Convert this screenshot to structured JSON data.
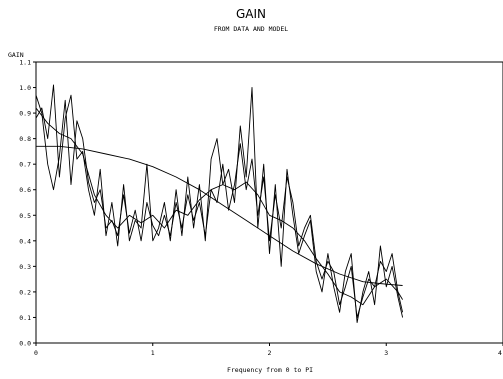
{
  "chart_data": {
    "type": "line",
    "title": "GAIN",
    "subtitle": "FROM DATA AND MODEL",
    "xlabel": "Frequency from 0 to PI",
    "ylabel": "GAIN",
    "xlim": [
      0,
      4
    ],
    "ylim": [
      0,
      1.1
    ],
    "xticks": [
      0,
      1,
      2,
      3,
      4
    ],
    "yticks": [
      0.0,
      0.1,
      0.2,
      0.3,
      0.4,
      0.5,
      0.6,
      0.7,
      0.8,
      0.9,
      1.0,
      1.1
    ],
    "ytick_labels": [
      "0.0",
      "0.1",
      "0.2",
      "0.3",
      "0.4",
      "0.5",
      "0.6",
      "0.7",
      "0.8",
      "0.9",
      "1.0",
      "1.1"
    ],
    "grid": false,
    "series": [
      {
        "values_x": [
          0,
          0.05,
          0.1,
          0.15,
          0.2,
          0.25,
          0.3,
          0.35,
          0.4,
          0.45,
          0.5,
          0.55,
          0.6,
          0.65,
          0.7,
          0.75,
          0.8,
          0.85,
          0.9,
          0.95,
          1.0,
          1.05,
          1.1,
          1.15,
          1.2,
          1.25,
          1.3,
          1.35,
          1.4,
          1.45,
          1.5,
          1.55,
          1.6,
          1.65,
          1.7,
          1.75,
          1.8,
          1.85,
          1.9,
          1.95,
          2.0,
          2.05,
          2.1,
          2.15,
          2.2,
          2.25,
          2.3,
          2.35,
          2.4,
          2.45,
          2.5,
          2.55,
          2.6,
          2.65,
          2.7,
          2.75,
          2.8,
          2.85,
          2.9,
          2.95,
          3.0,
          3.05,
          3.1,
          3.14
        ],
        "values": [
          0.97,
          0.9,
          0.7,
          0.6,
          0.73,
          0.95,
          0.62,
          0.87,
          0.8,
          0.63,
          0.55,
          0.6,
          0.45,
          0.48,
          0.42,
          0.58,
          0.43,
          0.52,
          0.4,
          0.55,
          0.46,
          0.42,
          0.5,
          0.42,
          0.55,
          0.45,
          0.58,
          0.48,
          0.55,
          0.42,
          0.6,
          0.55,
          0.7,
          0.52,
          0.62,
          0.78,
          0.6,
          0.72,
          0.5,
          0.65,
          0.4,
          0.58,
          0.45,
          0.65,
          0.55,
          0.38,
          0.45,
          0.5,
          0.32,
          0.25,
          0.32,
          0.28,
          0.15,
          0.22,
          0.3,
          0.1,
          0.18,
          0.25,
          0.22,
          0.32,
          0.28,
          0.35,
          0.2,
          0.12
        ]
      },
      {
        "values_x": [
          0,
          0.05,
          0.1,
          0.15,
          0.2,
          0.25,
          0.3,
          0.35,
          0.4,
          0.45,
          0.5,
          0.55,
          0.6,
          0.65,
          0.7,
          0.75,
          0.8,
          0.85,
          0.9,
          0.95,
          1.0,
          1.05,
          1.1,
          1.15,
          1.2,
          1.25,
          1.3,
          1.35,
          1.4,
          1.45,
          1.5,
          1.55,
          1.6,
          1.65,
          1.7,
          1.75,
          1.8,
          1.85,
          1.9,
          1.95,
          2.0,
          2.05,
          2.1,
          2.15,
          2.2,
          2.25,
          2.3,
          2.35,
          2.4,
          2.45,
          2.5,
          2.55,
          2.6,
          2.65,
          2.7,
          2.75,
          2.8,
          2.85,
          2.9,
          2.95,
          3.0,
          3.05,
          3.1,
          3.14
        ],
        "values": [
          0.88,
          0.92,
          0.8,
          1.01,
          0.65,
          0.88,
          0.97,
          0.72,
          0.75,
          0.6,
          0.5,
          0.68,
          0.42,
          0.55,
          0.38,
          0.62,
          0.4,
          0.48,
          0.45,
          0.7,
          0.4,
          0.45,
          0.55,
          0.4,
          0.6,
          0.42,
          0.65,
          0.45,
          0.62,
          0.4,
          0.72,
          0.8,
          0.62,
          0.68,
          0.55,
          0.85,
          0.65,
          1.0,
          0.45,
          0.7,
          0.35,
          0.62,
          0.3,
          0.68,
          0.5,
          0.35,
          0.42,
          0.48,
          0.28,
          0.2,
          0.35,
          0.22,
          0.12,
          0.28,
          0.35,
          0.08,
          0.2,
          0.28,
          0.15,
          0.38,
          0.22,
          0.3,
          0.18,
          0.1
        ]
      },
      {
        "values_x": [
          0,
          0.1,
          0.2,
          0.3,
          0.4,
          0.5,
          0.6,
          0.7,
          0.8,
          0.9,
          1.0,
          1.1,
          1.2,
          1.3,
          1.4,
          1.5,
          1.6,
          1.7,
          1.8,
          1.9,
          2.0,
          2.1,
          2.2,
          2.3,
          2.4,
          2.5,
          2.6,
          2.7,
          2.8,
          2.9,
          3.0,
          3.1,
          3.14
        ],
        "values": [
          0.92,
          0.86,
          0.82,
          0.8,
          0.74,
          0.58,
          0.5,
          0.45,
          0.5,
          0.47,
          0.5,
          0.45,
          0.52,
          0.5,
          0.56,
          0.6,
          0.62,
          0.6,
          0.63,
          0.58,
          0.5,
          0.48,
          0.45,
          0.4,
          0.33,
          0.27,
          0.2,
          0.18,
          0.15,
          0.22,
          0.25,
          0.2,
          0.17
        ]
      },
      {
        "values_x": [
          0,
          0.2,
          0.4,
          0.6,
          0.8,
          1.0,
          1.2,
          1.4,
          1.6,
          1.8,
          2.0,
          2.2,
          2.4,
          2.6,
          2.8,
          3.0,
          3.14
        ],
        "values": [
          0.77,
          0.77,
          0.76,
          0.74,
          0.72,
          0.69,
          0.65,
          0.6,
          0.54,
          0.48,
          0.42,
          0.36,
          0.31,
          0.27,
          0.24,
          0.23,
          0.225
        ]
      }
    ]
  }
}
